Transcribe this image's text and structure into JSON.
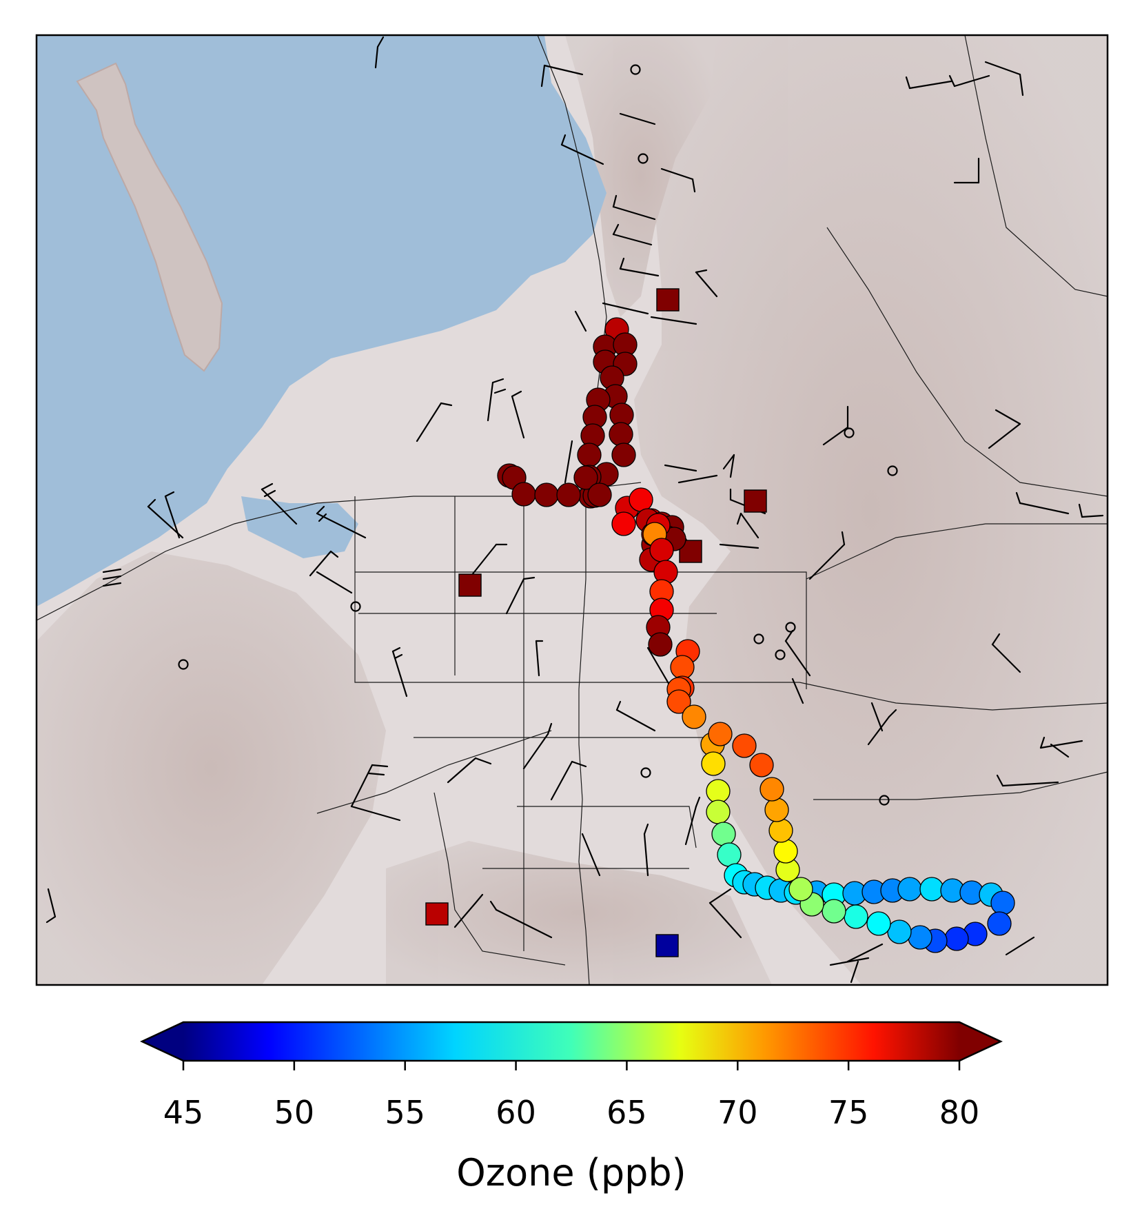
{
  "colorbar": {
    "label": "Ozone (ppb)",
    "min": 45,
    "max": 80,
    "ticks": [
      "45",
      "50",
      "55",
      "60",
      "65",
      "70",
      "75",
      "80"
    ],
    "extend": "both",
    "colormap": "jet"
  },
  "colors": {
    "water": "#a0bed9",
    "land": "#e2dbdb",
    "terrain_shadow": "#b9a9a7",
    "roads": "#1a1a1a"
  },
  "map_layers": [
    "shaded-relief-basemap",
    "lake",
    "roads",
    "wind-barbs",
    "calm-wind-circles",
    "monitoring-stations",
    "ozone-track"
  ],
  "stations_ozone_ppb": [
    80,
    80,
    80,
    80,
    78,
    46
  ],
  "track_ozone_ppb": [
    78,
    80,
    80,
    80,
    80,
    80,
    80,
    80,
    80,
    80,
    80,
    80,
    80,
    80,
    80,
    80,
    80,
    80,
    80,
    80,
    80,
    80,
    80,
    80,
    80,
    77,
    76,
    77,
    76,
    78,
    79,
    80,
    80,
    80,
    79,
    78,
    77,
    71,
    78,
    77,
    77,
    74,
    76,
    79,
    80,
    74,
    73,
    74,
    73,
    73,
    71,
    70,
    68,
    66,
    65,
    62,
    60,
    58,
    57,
    56,
    57,
    56,
    57,
    55,
    58,
    55,
    54,
    54,
    55,
    57,
    55,
    54,
    56,
    53,
    52,
    51,
    51,
    52,
    54,
    56,
    58,
    59,
    62,
    63,
    64,
    66,
    67,
    69,
    70,
    71,
    73,
    73,
    72
  ]
}
